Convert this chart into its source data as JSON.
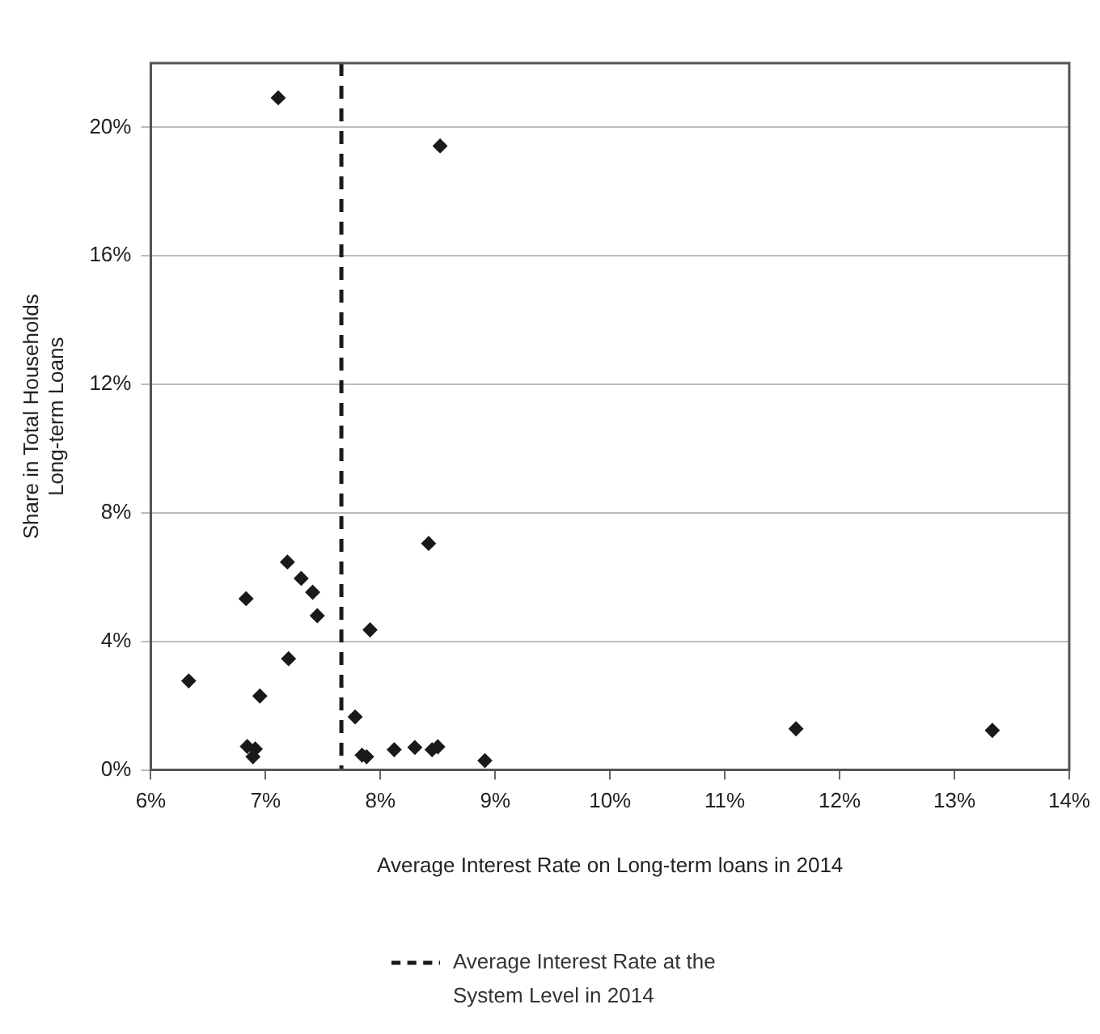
{
  "chart_data": {
    "type": "scatter",
    "xlabel": "Average Interest Rate on Long-term loans in 2014",
    "ylabel": "Share in Total Households\nLong-term Loans",
    "x": [
      6.33,
      6.83,
      6.95,
      7.19,
      7.31,
      7.41,
      7.45,
      7.2,
      6.84,
      6.91,
      6.89,
      7.91,
      8.42,
      7.78,
      7.84,
      7.88,
      8.12,
      8.3,
      8.45,
      8.5,
      8.91,
      11.62,
      13.33,
      7.11,
      8.52
    ],
    "series": [
      {
        "color": "#1a1a1a",
        "values": [
          2.77,
          5.33,
          2.3,
          6.47,
          5.96,
          5.53,
          4.8,
          3.46,
          0.73,
          0.65,
          0.41,
          4.36,
          7.05,
          1.65,
          0.46,
          0.41,
          0.63,
          0.7,
          0.63,
          0.72,
          0.29,
          1.28,
          1.23,
          20.92,
          19.42
        ]
      }
    ],
    "marker": "diamond",
    "xlim": [
      6,
      14
    ],
    "xticks": [
      {
        "value": 6,
        "label": "6%"
      },
      {
        "value": 7,
        "label": "7%"
      },
      {
        "value": 8,
        "label": "8%"
      },
      {
        "value": 9,
        "label": "9%"
      },
      {
        "value": 10,
        "label": "10%"
      },
      {
        "value": 11,
        "label": "11%"
      },
      {
        "value": 12,
        "label": "12%"
      },
      {
        "value": 13,
        "label": "13%"
      },
      {
        "value": 14,
        "label": "14%"
      }
    ],
    "ylim": [
      0,
      22
    ],
    "yticks": [
      {
        "value": 0,
        "label": "0%"
      },
      {
        "value": 4,
        "label": "4%"
      },
      {
        "value": 8,
        "label": "8%"
      },
      {
        "value": 12,
        "label": "12%"
      },
      {
        "value": 16,
        "label": "16%"
      },
      {
        "value": 20,
        "label": "20%"
      }
    ],
    "ref_lines": [
      {
        "axis": "x",
        "value": 7.66,
        "label": "Average Interest Rate at the System Level in 2014",
        "color": "#1a1a1a",
        "line_style": "dashed"
      }
    ],
    "grid": "y",
    "legend": "bottom"
  }
}
